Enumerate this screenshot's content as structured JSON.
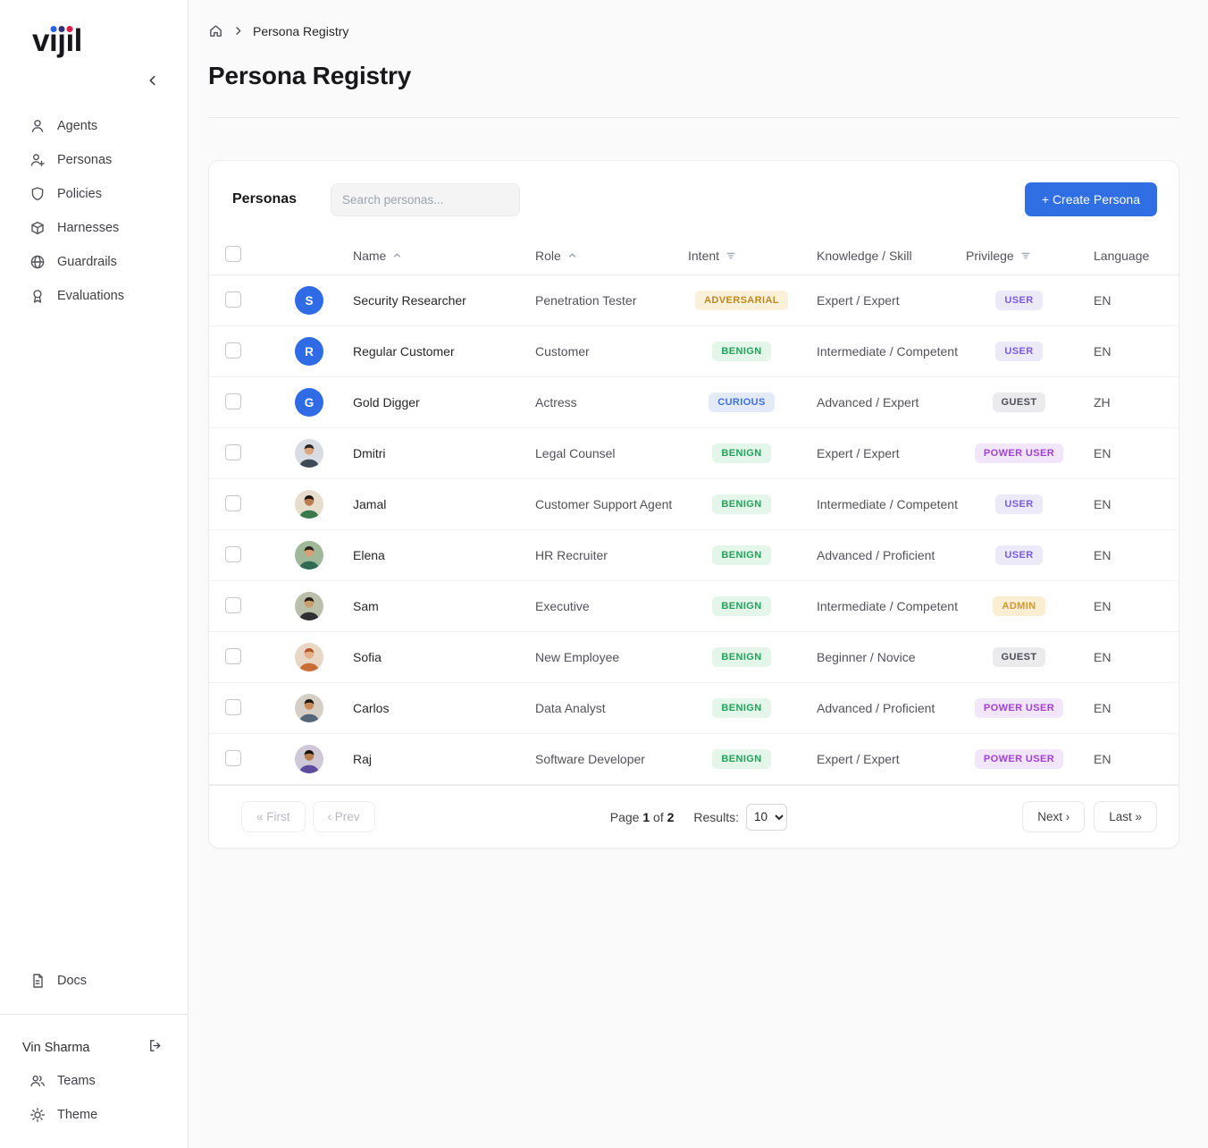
{
  "sidebar": {
    "logo": "vijil",
    "logo_dot_colors": [
      "#2563eb",
      "#312e81",
      "#e11d48"
    ],
    "items": [
      {
        "label": "Agents"
      },
      {
        "label": "Personas"
      },
      {
        "label": "Policies"
      },
      {
        "label": "Harnesses"
      },
      {
        "label": "Guardrails"
      },
      {
        "label": "Evaluations"
      }
    ],
    "docs_label": "Docs",
    "user_name": "Vin Sharma",
    "footer_items": [
      {
        "label": "Teams"
      },
      {
        "label": "Theme"
      }
    ]
  },
  "breadcrumb": {
    "current": "Persona Registry"
  },
  "page": {
    "title": "Persona Registry"
  },
  "card": {
    "title": "Personas",
    "search_placeholder": "Search personas...",
    "create_button": "+ Create Persona"
  },
  "table": {
    "headers": [
      "Name",
      "Role",
      "Intent",
      "Knowledge / Skill",
      "Privilege",
      "Language"
    ],
    "rows": [
      {
        "avatar": {
          "type": "initial",
          "text": "S",
          "color": "#2f6be4"
        },
        "name": "Security Researcher",
        "role": "Penetration Tester",
        "intent": "ADVERSARIAL",
        "knowledge": "Expert / Expert",
        "privilege": "USER",
        "language": "EN"
      },
      {
        "avatar": {
          "type": "initial",
          "text": "R",
          "color": "#2f6be4"
        },
        "name": "Regular Customer",
        "role": "Customer",
        "intent": "BENIGN",
        "knowledge": "Intermediate / Competent",
        "privilege": "USER",
        "language": "EN"
      },
      {
        "avatar": {
          "type": "initial",
          "text": "G",
          "color": "#2f6be4"
        },
        "name": "Gold Digger",
        "role": "Actress",
        "intent": "CURIOUS",
        "knowledge": "Advanced / Expert",
        "privilege": "GUEST",
        "language": "ZH"
      },
      {
        "avatar": {
          "type": "photo",
          "bg": "#d7dde3",
          "skin": "#dba67c",
          "hair": "#2e2620",
          "shirt": "#3f4a58"
        },
        "name": "Dmitri",
        "role": "Legal Counsel",
        "intent": "BENIGN",
        "knowledge": "Expert / Expert",
        "privilege": "POWER USER",
        "language": "EN"
      },
      {
        "avatar": {
          "type": "photo",
          "bg": "#e6ddcd",
          "skin": "#b97c4f",
          "hair": "#20140e",
          "shirt": "#3c7a4e"
        },
        "name": "Jamal",
        "role": "Customer Support Agent",
        "intent": "BENIGN",
        "knowledge": "Intermediate / Competent",
        "privilege": "USER",
        "language": "EN"
      },
      {
        "avatar": {
          "type": "photo",
          "bg": "#9fb89a",
          "skin": "#d9a078",
          "hair": "#2b211c",
          "shirt": "#2f6b53"
        },
        "name": "Elena",
        "role": "HR Recruiter",
        "intent": "BENIGN",
        "knowledge": "Advanced / Proficient",
        "privilege": "USER",
        "language": "EN"
      },
      {
        "avatar": {
          "type": "photo",
          "bg": "#b9bfa9",
          "skin": "#c99e6b",
          "hair": "#241c16",
          "shirt": "#2f2f33"
        },
        "name": "Sam",
        "role": "Executive",
        "intent": "BENIGN",
        "knowledge": "Intermediate / Competent",
        "privilege": "ADMIN",
        "language": "EN"
      },
      {
        "avatar": {
          "type": "photo",
          "bg": "#e8d7c4",
          "skin": "#e4b18a",
          "hair": "#b5542a",
          "shirt": "#c96f35"
        },
        "name": "Sofia",
        "role": "New Employee",
        "intent": "BENIGN",
        "knowledge": "Beginner / Novice",
        "privilege": "GUEST",
        "language": "EN"
      },
      {
        "avatar": {
          "type": "photo",
          "bg": "#d6cfc6",
          "skin": "#c98a5a",
          "hair": "#1f1812",
          "shirt": "#54677a"
        },
        "name": "Carlos",
        "role": "Data Analyst",
        "intent": "BENIGN",
        "knowledge": "Advanced / Proficient",
        "privilege": "POWER USER",
        "language": "EN"
      },
      {
        "avatar": {
          "type": "photo",
          "bg": "#cfc8d6",
          "skin": "#b97c4f",
          "hair": "#17100c",
          "shirt": "#5e4b9e"
        },
        "name": "Raj",
        "role": "Software Developer",
        "intent": "BENIGN",
        "knowledge": "Expert / Expert",
        "privilege": "POWER USER",
        "language": "EN"
      }
    ]
  },
  "pagination": {
    "first": "« First",
    "prev": "‹ Prev",
    "page_label": "Page",
    "current_page": "1",
    "of_label": "of",
    "total_pages": "2",
    "results_label": "Results:",
    "results_value": "10",
    "results_options": [
      "10"
    ],
    "next": "Next ›",
    "last": "Last »"
  },
  "palette": {
    "accent": "#2f6fe3",
    "intent": {
      "ADVERSARIAL": {
        "bg": "#fbf0da",
        "fg": "#c08a1e"
      },
      "BENIGN": {
        "bg": "#e4f5ea",
        "fg": "#23a15b"
      },
      "CURIOUS": {
        "bg": "#e3ebfb",
        "fg": "#3d6fe0"
      }
    },
    "privilege": {
      "USER": {
        "bg": "#eceaf9",
        "fg": "#7a5ae0"
      },
      "GUEST": {
        "bg": "#ebebee",
        "fg": "#4b4b55"
      },
      "POWER USER": {
        "bg": "#f1e6fa",
        "fg": "#a33fd6"
      },
      "ADMIN": {
        "bg": "#faedd2",
        "fg": "#d2982a"
      }
    }
  }
}
